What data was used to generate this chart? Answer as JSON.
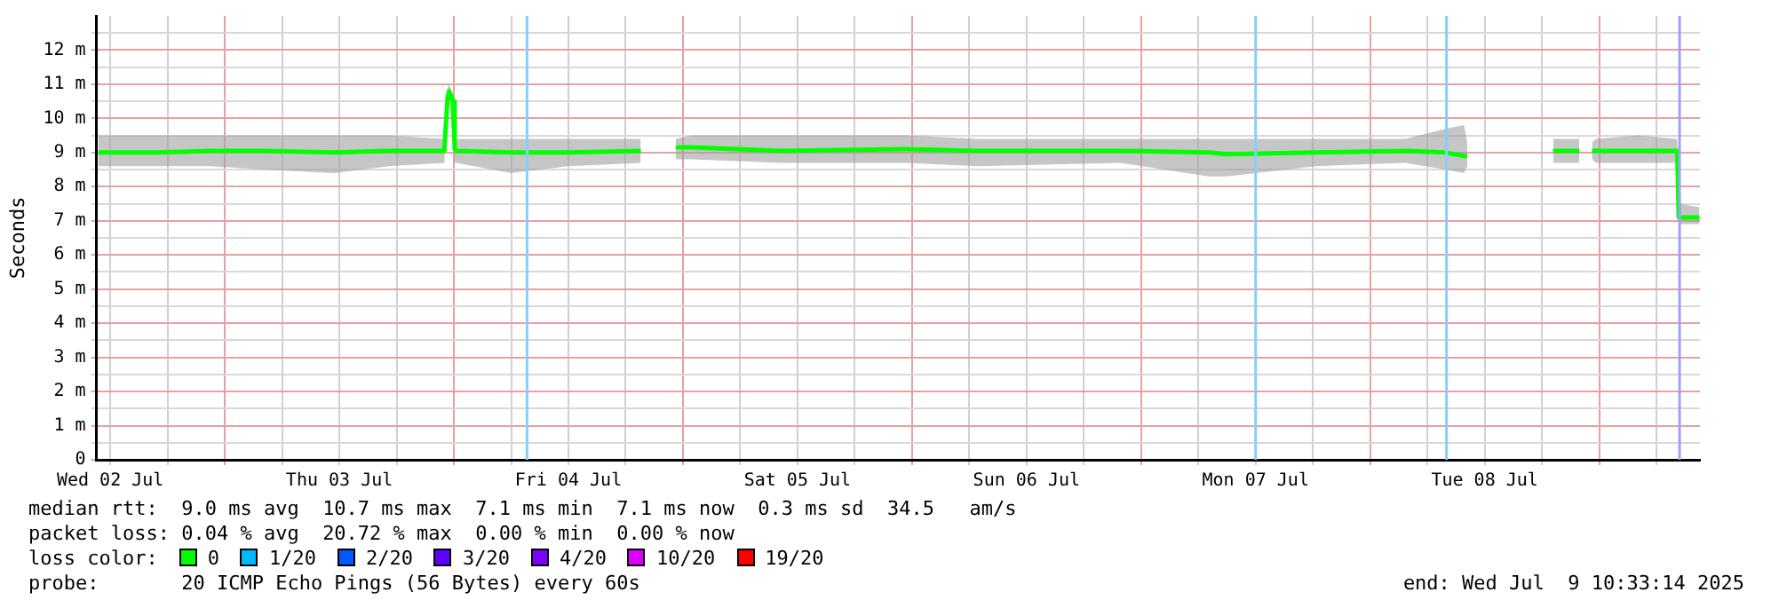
{
  "chart_data": {
    "type": "line",
    "ylabel": "Seconds",
    "legend_title": "loss color:",
    "legend": "bottom",
    "grid": true,
    "marker": "none",
    "line_style": "solid",
    "xlim": [
      "2025-07-02T10:33",
      "2025-07-09T10:33"
    ],
    "xticks": [
      {
        "value": "2025-07-02T12:00",
        "label": "Wed 02 Jul"
      },
      {
        "value": "2025-07-02T18:00",
        "label": null
      },
      {
        "value": "2025-07-03T00:00",
        "label": null
      },
      {
        "value": "2025-07-03T06:00",
        "label": null
      },
      {
        "value": "2025-07-03T12:00",
        "label": "Thu 03 Jul"
      },
      {
        "value": "2025-07-03T18:00",
        "label": null
      },
      {
        "value": "2025-07-04T00:00",
        "label": null
      },
      {
        "value": "2025-07-04T06:00",
        "label": null
      },
      {
        "value": "2025-07-04T12:00",
        "label": "Fri 04 Jul"
      },
      {
        "value": "2025-07-04T18:00",
        "label": null
      },
      {
        "value": "2025-07-05T00:00",
        "label": null
      },
      {
        "value": "2025-07-05T06:00",
        "label": null
      },
      {
        "value": "2025-07-05T12:00",
        "label": "Sat 05 Jul"
      },
      {
        "value": "2025-07-05T18:00",
        "label": null
      },
      {
        "value": "2025-07-06T00:00",
        "label": null
      },
      {
        "value": "2025-07-06T06:00",
        "label": null
      },
      {
        "value": "2025-07-06T12:00",
        "label": "Sun 06 Jul"
      },
      {
        "value": "2025-07-06T18:00",
        "label": null
      },
      {
        "value": "2025-07-07T00:00",
        "label": null
      },
      {
        "value": "2025-07-07T06:00",
        "label": null
      },
      {
        "value": "2025-07-07T12:00",
        "label": "Mon 07 Jul"
      },
      {
        "value": "2025-07-07T18:00",
        "label": null
      },
      {
        "value": "2025-07-08T00:00",
        "label": null
      },
      {
        "value": "2025-07-08T06:00",
        "label": null
      },
      {
        "value": "2025-07-08T12:00",
        "label": "Tue 08 Jul"
      },
      {
        "value": "2025-07-08T18:00",
        "label": null
      },
      {
        "value": "2025-07-09T00:00",
        "label": null
      },
      {
        "value": "2025-07-09T06:00",
        "label": null
      }
    ],
    "ylim": [
      0,
      13
    ],
    "yticks": [
      {
        "value": 0,
        "label": "0"
      },
      {
        "value": 0.5,
        "label": null
      },
      {
        "value": 1,
        "label": "1 m"
      },
      {
        "value": 1.5,
        "label": null
      },
      {
        "value": 2,
        "label": "2 m"
      },
      {
        "value": 2.5,
        "label": null
      },
      {
        "value": 3,
        "label": "3 m"
      },
      {
        "value": 3.5,
        "label": null
      },
      {
        "value": 4,
        "label": "4 m"
      },
      {
        "value": 4.5,
        "label": null
      },
      {
        "value": 5,
        "label": "5 m"
      },
      {
        "value": 5.5,
        "label": null
      },
      {
        "value": 6,
        "label": "6 m"
      },
      {
        "value": 6.5,
        "label": null
      },
      {
        "value": 7,
        "label": "7 m"
      },
      {
        "value": 7.5,
        "label": null
      },
      {
        "value": 8,
        "label": "8 m"
      },
      {
        "value": 8.5,
        "label": null
      },
      {
        "value": 9,
        "label": "9 m"
      },
      {
        "value": 9.5,
        "label": null
      },
      {
        "value": 10,
        "label": "10 m"
      },
      {
        "value": 10.5,
        "label": null
      },
      {
        "value": 11,
        "label": "11 m"
      },
      {
        "value": 11.5,
        "label": null
      },
      {
        "value": 12,
        "label": "12 m"
      },
      {
        "value": 12.5,
        "label": null
      }
    ],
    "x": [
      "2025-07-02T10:45",
      "2025-07-02T17:00",
      "2025-07-02T22:30",
      "2025-07-03T04:00",
      "2025-07-03T11:30",
      "2025-07-03T17:10",
      "2025-07-03T23:00",
      "2025-07-03T23:20",
      "2025-07-03T23:30",
      "2025-07-03T23:55",
      "2025-07-04T00:05",
      "2025-07-04T00:15",
      "2025-07-04T06:00",
      "2025-07-04T12:00",
      "2025-07-04T19:35",
      "2025-07-04T21:30",
      "2025-07-04T23:15",
      "2025-07-05T01:00",
      "2025-07-05T10:15",
      "2025-07-05T23:20",
      "2025-07-06T06:50",
      "2025-07-06T21:45",
      "2025-07-07T07:05",
      "2025-07-07T09:00",
      "2025-07-07T18:20",
      "2025-07-08T03:40",
      "2025-07-08T07:55",
      "2025-07-08T09:50",
      "2025-07-08T10:10",
      "2025-07-08T10:20",
      "2025-07-08T10:35",
      "2025-07-08T11:05",
      "2025-07-08T15:00",
      "2025-07-08T19:10",
      "2025-07-08T21:55",
      "2025-07-08T22:40",
      "2025-07-08T23:15",
      "2025-07-08T23:40",
      "2025-07-09T04:05",
      "2025-07-09T08:10",
      "2025-07-09T08:20",
      "2025-07-09T10:30"
    ],
    "series": [
      {
        "name": "0",
        "color": "#00ff00",
        "values": [
          9.0,
          9.0,
          9.05,
          9.05,
          9.0,
          9.05,
          9.05,
          10.6,
          10.8,
          10.5,
          9.1,
          9.05,
          9.0,
          9.0,
          9.05,
          null,
          9.15,
          9.15,
          9.05,
          9.1,
          9.05,
          9.05,
          9.0,
          8.95,
          9.0,
          9.05,
          9.0,
          8.9,
          8.9,
          null,
          null,
          null,
          null,
          9.05,
          9.05,
          null,
          9.05,
          9.05,
          9.05,
          9.05,
          7.1,
          7.1
        ],
        "lower": [
          8.6,
          8.6,
          8.6,
          8.5,
          8.4,
          8.6,
          8.7,
          10.4,
          10.5,
          9.3,
          8.7,
          8.7,
          8.4,
          8.6,
          8.7,
          null,
          8.8,
          8.8,
          8.7,
          8.7,
          8.6,
          8.7,
          8.3,
          8.3,
          8.6,
          8.7,
          8.5,
          8.4,
          8.6,
          null,
          null,
          null,
          null,
          8.7,
          8.7,
          null,
          8.8,
          8.7,
          8.7,
          8.7,
          6.9,
          6.9
        ],
        "upper": [
          9.5,
          9.5,
          9.5,
          9.5,
          9.5,
          9.5,
          9.4,
          10.9,
          11.0,
          10.7,
          9.3,
          9.4,
          9.4,
          9.4,
          9.4,
          null,
          9.4,
          9.5,
          9.5,
          9.5,
          9.4,
          9.4,
          9.4,
          9.4,
          9.4,
          9.4,
          9.7,
          9.8,
          9.3,
          null,
          null,
          null,
          null,
          9.4,
          9.4,
          null,
          9.3,
          9.4,
          9.5,
          9.4,
          7.5,
          7.4
        ]
      },
      {
        "name": "1/20",
        "color": "#00b8ff",
        "values": [
          null,
          null,
          null,
          null,
          null,
          null,
          null,
          null,
          null,
          null,
          null,
          null,
          null,
          null,
          null,
          null,
          null,
          null,
          null,
          null,
          null,
          null,
          null,
          null,
          null,
          null,
          null,
          null,
          null,
          null,
          null,
          null,
          null,
          null,
          null,
          null,
          null,
          null,
          null,
          null,
          null,
          null
        ]
      },
      {
        "name": "2/20",
        "color": "#0059ff",
        "values": [
          null,
          null,
          null,
          null,
          null,
          null,
          null,
          null,
          null,
          null,
          null,
          null,
          null,
          null,
          null,
          null,
          null,
          null,
          null,
          null,
          null,
          null,
          null,
          null,
          null,
          null,
          null,
          null,
          null,
          null,
          null,
          null,
          null,
          null,
          null,
          null,
          null,
          null,
          null,
          null,
          null,
          null
        ]
      },
      {
        "name": "3/20",
        "color": "#5e00ff",
        "values": [
          null,
          null,
          null,
          null,
          null,
          null,
          null,
          null,
          null,
          null,
          null,
          null,
          null,
          null,
          null,
          null,
          null,
          null,
          null,
          null,
          null,
          null,
          null,
          null,
          null,
          null,
          null,
          null,
          null,
          null,
          null,
          null,
          null,
          null,
          null,
          null,
          null,
          null,
          null,
          null,
          null,
          null
        ]
      },
      {
        "name": "4/20",
        "color": "#7e00ff",
        "values": [
          null,
          null,
          null,
          null,
          null,
          null,
          null,
          null,
          null,
          null,
          null,
          null,
          null,
          null,
          null,
          null,
          null,
          null,
          null,
          null,
          null,
          null,
          null,
          null,
          null,
          null,
          null,
          null,
          null,
          null,
          null,
          null,
          null,
          null,
          null,
          null,
          null,
          null,
          null,
          null,
          null,
          null
        ]
      },
      {
        "name": "10/20",
        "color": "#dd00ff",
        "values": [
          null,
          null,
          null,
          null,
          null,
          null,
          null,
          null,
          null,
          null,
          null,
          null,
          null,
          null,
          null,
          null,
          null,
          null,
          null,
          null,
          null,
          null,
          null,
          null,
          null,
          null,
          null,
          null,
          null,
          null,
          null,
          null,
          null,
          null,
          null,
          null,
          null,
          null,
          null,
          null,
          null,
          null
        ]
      },
      {
        "name": "19/20",
        "color": "#ff0000",
        "values": [
          null,
          null,
          null,
          null,
          null,
          null,
          null,
          null,
          null,
          null,
          null,
          null,
          null,
          null,
          null,
          null,
          null,
          null,
          null,
          null,
          null,
          null,
          null,
          null,
          null,
          null,
          null,
          null,
          null,
          null,
          null,
          null,
          null,
          null,
          null,
          null,
          null,
          null,
          null,
          null,
          null,
          null
        ]
      }
    ],
    "ref_lines": [
      {
        "axis": "x",
        "value": "2025-07-04T07:40",
        "color": "#87cefa"
      },
      {
        "axis": "x",
        "value": "2025-07-07T12:00",
        "color": "#87cefa"
      },
      {
        "axis": "x",
        "value": "2025-07-08T08:00",
        "color": "#87cefa"
      },
      {
        "axis": "x",
        "value": "2025-07-09T08:25",
        "color": "#a0a0ff"
      }
    ],
    "annotations": [
      "median rtt:  9.0 ms avg  10.7 ms max  7.1 ms min  7.1 ms now  0.3 ms sd  34.5   am/s",
      "packet loss: 0.04 % avg  20.72 % max  0.00 % min  0.00 % now",
      "probe:       20 ICMP Echo Pings (56 Bytes) every 60s",
      "end: Wed Jul  9 10:33:14 2025"
    ]
  }
}
